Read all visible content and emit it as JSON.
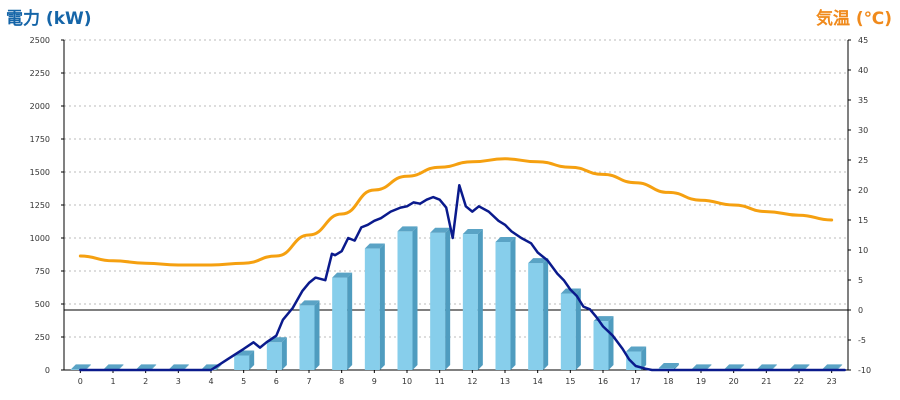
{
  "chart_data": {
    "type": "bar",
    "title_left": "電力 (kW)",
    "title_right": "気温 (℃)",
    "colors": {
      "bar_front": "#87ceeb",
      "bar_side": "#4f9cbf",
      "bar_top": "#5aa3c5",
      "power_line": "#0a1a8c",
      "temperature_line": "#f5a010",
      "grid": "#bbbbbb",
      "title_left": "#1565a8",
      "title_right": "#f08a1c"
    },
    "grid": true,
    "x_categories": [
      "0",
      "1",
      "2",
      "3",
      "4",
      "5",
      "6",
      "7",
      "8",
      "9",
      "10",
      "11",
      "12",
      "13",
      "14",
      "15",
      "16",
      "17",
      "18",
      "19",
      "20",
      "21",
      "22",
      "23"
    ],
    "left_axis": {
      "range": [
        0,
        2500
      ],
      "ticks": [
        0,
        250,
        500,
        750,
        1000,
        1250,
        1500,
        1750,
        2000,
        2250,
        2500
      ]
    },
    "right_axis": {
      "range": [
        -10,
        45
      ],
      "ticks": [
        -10,
        -5,
        0,
        5,
        10,
        15,
        20,
        25,
        30,
        35,
        40,
        45
      ],
      "zero_reference_line": true
    },
    "bars": {
      "axis": "left",
      "values": [
        5,
        5,
        5,
        5,
        5,
        110,
        210,
        490,
        700,
        920,
        1050,
        1040,
        1030,
        970,
        810,
        580,
        370,
        140,
        15,
        5,
        5,
        5,
        5,
        5
      ]
    },
    "power_line": {
      "axis": "left",
      "x": [
        0,
        4.0,
        4.5,
        5.0,
        5.3,
        5.5,
        5.7,
        6.0,
        6.2,
        6.5,
        6.8,
        7.0,
        7.2,
        7.5,
        7.7,
        7.8,
        8.0,
        8.2,
        8.4,
        8.6,
        8.8,
        9.0,
        9.2,
        9.5,
        9.8,
        10.0,
        10.2,
        10.4,
        10.6,
        10.8,
        11.0,
        11.2,
        11.4,
        11.6,
        11.8,
        12.0,
        12.2,
        12.5,
        12.8,
        13.0,
        13.2,
        13.5,
        13.8,
        14.0,
        14.3,
        14.6,
        14.8,
        15.0,
        15.2,
        15.4,
        15.6,
        15.8,
        16.0,
        16.3,
        16.6,
        16.8,
        17.0,
        17.3,
        17.5,
        17.7,
        23.4
      ],
      "y": [
        0,
        0,
        80,
        160,
        210,
        170,
        210,
        260,
        380,
        470,
        600,
        660,
        700,
        680,
        880,
        870,
        900,
        1000,
        980,
        1080,
        1100,
        1130,
        1150,
        1200,
        1230,
        1240,
        1270,
        1260,
        1290,
        1310,
        1290,
        1230,
        1000,
        1400,
        1240,
        1200,
        1240,
        1200,
        1130,
        1100,
        1050,
        1000,
        960,
        890,
        830,
        730,
        680,
        610,
        560,
        480,
        460,
        400,
        330,
        260,
        160,
        80,
        30,
        10,
        0,
        0,
        0
      ]
    },
    "temperature_line": {
      "axis": "right",
      "values": [
        9.0,
        8.2,
        7.8,
        7.5,
        7.5,
        7.8,
        9.0,
        12.5,
        16.0,
        20.0,
        22.3,
        23.8,
        24.7,
        25.2,
        24.7,
        23.8,
        22.6,
        21.2,
        19.6,
        18.3,
        17.5,
        16.4,
        15.8,
        15.0
      ]
    }
  }
}
